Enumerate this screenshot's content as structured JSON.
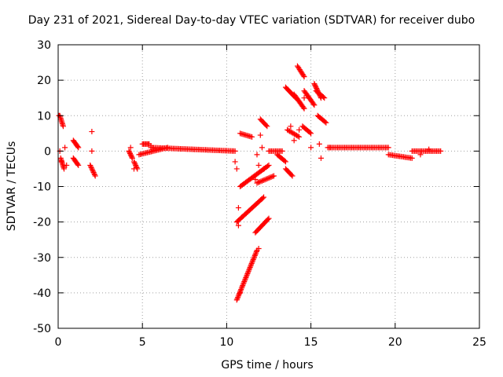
{
  "chart_data": {
    "type": "scatter",
    "title": "Day 231 of 2021, Sidereal Day-to-day VTEC variation (SDTVAR) for receiver dubo",
    "xlabel": "GPS time / hours",
    "ylabel": "SDTVAR / TECUs",
    "xlim": [
      0,
      25
    ],
    "ylim": [
      -50,
      30
    ],
    "xticks": [
      0,
      5,
      10,
      15,
      20,
      25
    ],
    "yticks": [
      -50,
      -40,
      -30,
      -20,
      -10,
      0,
      10,
      20,
      30
    ],
    "grid": true,
    "marker": "+",
    "color": "#ff0000",
    "segments": [
      {
        "x": [
          0.1,
          0.3
        ],
        "y": [
          10,
          7
        ]
      },
      {
        "x": [
          0.15,
          0.35
        ],
        "y": [
          -2,
          -5
        ]
      },
      {
        "x": [
          0.9,
          1.2
        ],
        "y": [
          3,
          1
        ]
      },
      {
        "x": [
          0.9,
          1.2
        ],
        "y": [
          -2,
          -4
        ]
      },
      {
        "x": [
          1.9,
          2.2
        ],
        "y": [
          -4,
          -7
        ]
      },
      {
        "x": [
          4.2,
          4.4
        ],
        "y": [
          0,
          -2
        ]
      },
      {
        "x": [
          4.5,
          4.7
        ],
        "y": [
          -3,
          -5
        ]
      },
      {
        "x": [
          4.8,
          6.5
        ],
        "y": [
          -1,
          1
        ]
      },
      {
        "x": [
          5.0,
          5.4
        ],
        "y": [
          2,
          2
        ]
      },
      {
        "x": [
          5.5,
          10.5
        ],
        "y": [
          1,
          0
        ]
      },
      {
        "x": [
          10.6,
          11.8
        ],
        "y": [
          -42,
          -28
        ]
      },
      {
        "x": [
          10.6,
          12.2
        ],
        "y": [
          -20,
          -13
        ]
      },
      {
        "x": [
          10.8,
          12.5
        ],
        "y": [
          -10,
          -4
        ]
      },
      {
        "x": [
          10.8,
          11.5
        ],
        "y": [
          5,
          4
        ]
      },
      {
        "x": [
          11.7,
          12.5
        ],
        "y": [
          -23,
          -19
        ]
      },
      {
        "x": [
          11.8,
          12.8
        ],
        "y": [
          -9,
          -7
        ]
      },
      {
        "x": [
          12.0,
          12.4
        ],
        "y": [
          9,
          7
        ]
      },
      {
        "x": [
          12.5,
          13.3
        ],
        "y": [
          0,
          0
        ]
      },
      {
        "x": [
          13.0,
          13.5
        ],
        "y": [
          -1,
          -3
        ]
      },
      {
        "x": [
          13.5,
          13.9
        ],
        "y": [
          -5,
          -7
        ]
      },
      {
        "x": [
          13.5,
          14.1
        ],
        "y": [
          18,
          15
        ]
      },
      {
        "x": [
          13.6,
          14.3
        ],
        "y": [
          6,
          4
        ]
      },
      {
        "x": [
          14.2,
          14.6
        ],
        "y": [
          24,
          21
        ]
      },
      {
        "x": [
          14.0,
          14.6
        ],
        "y": [
          16,
          12
        ]
      },
      {
        "x": [
          14.6,
          15.2
        ],
        "y": [
          17,
          13
        ]
      },
      {
        "x": [
          14.5,
          15.0
        ],
        "y": [
          7,
          5
        ]
      },
      {
        "x": [
          15.2,
          15.6
        ],
        "y": [
          19,
          15
        ]
      },
      {
        "x": [
          15.4,
          15.9
        ],
        "y": [
          10,
          8
        ]
      },
      {
        "x": [
          15.3,
          15.8
        ],
        "y": [
          17,
          15
        ]
      },
      {
        "x": [
          16.0,
          19.6
        ],
        "y": [
          1,
          1
        ]
      },
      {
        "x": [
          19.6,
          21.0
        ],
        "y": [
          -1,
          -2
        ]
      },
      {
        "x": [
          21.0,
          22.7
        ],
        "y": [
          0,
          0
        ]
      }
    ],
    "points": [
      {
        "x": 0.05,
        "y": 10
      },
      {
        "x": 0.1,
        "y": 0
      },
      {
        "x": 0.2,
        "y": -3
      },
      {
        "x": 0.4,
        "y": 1
      },
      {
        "x": 0.5,
        "y": -4
      },
      {
        "x": 2.0,
        "y": 5.5
      },
      {
        "x": 2.0,
        "y": 0
      },
      {
        "x": 2.1,
        "y": -6
      },
      {
        "x": 4.3,
        "y": 1
      },
      {
        "x": 4.5,
        "y": -5
      },
      {
        "x": 5.5,
        "y": 1.5
      },
      {
        "x": 10.6,
        "y": -5
      },
      {
        "x": 10.7,
        "y": -21
      },
      {
        "x": 10.7,
        "y": -16
      },
      {
        "x": 10.5,
        "y": -3
      },
      {
        "x": 10.8,
        "y": -40
      },
      {
        "x": 11.9,
        "y": -27.5
      },
      {
        "x": 11.7,
        "y": -8
      },
      {
        "x": 11.8,
        "y": -1
      },
      {
        "x": 11.9,
        "y": -4
      },
      {
        "x": 12.1,
        "y": 1
      },
      {
        "x": 12.0,
        "y": 4.5
      },
      {
        "x": 12.2,
        "y": -5
      },
      {
        "x": 13.8,
        "y": 7
      },
      {
        "x": 14.0,
        "y": 3
      },
      {
        "x": 14.3,
        "y": 6
      },
      {
        "x": 14.6,
        "y": 15
      },
      {
        "x": 15.0,
        "y": 1
      },
      {
        "x": 15.5,
        "y": 2
      },
      {
        "x": 15.6,
        "y": -2
      },
      {
        "x": 16.1,
        "y": 1
      },
      {
        "x": 21.5,
        "y": -1
      },
      {
        "x": 22.0,
        "y": 0.5
      }
    ]
  }
}
